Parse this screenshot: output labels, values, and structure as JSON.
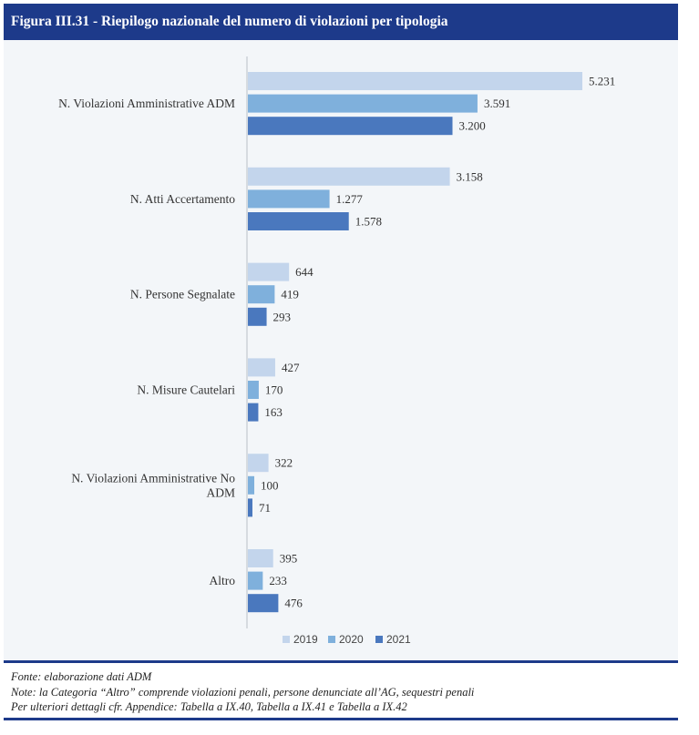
{
  "figure": {
    "title": "Figura III.31 - Riepilogo nazionale del numero di violazioni per tipologia"
  },
  "chart_data": {
    "type": "bar",
    "orientation": "horizontal",
    "categories": [
      [
        "N. Violazioni Amministrative ADM"
      ],
      [
        "N. Atti Accertamento"
      ],
      [
        "N. Persone Segnalate"
      ],
      [
        "N. Misure Cautelari"
      ],
      [
        "N. Violazioni Amministrative No",
        "ADM"
      ],
      [
        "Altro"
      ]
    ],
    "series": [
      {
        "name": "2019",
        "color": "#c3d5ec",
        "values": [
          5231,
          3158,
          644,
          427,
          322,
          395
        ],
        "labels": [
          "5.231",
          "3.158",
          "644",
          "427",
          "322",
          "395"
        ]
      },
      {
        "name": "2020",
        "color": "#7fb0dc",
        "values": [
          3591,
          1277,
          419,
          170,
          100,
          233
        ],
        "labels": [
          "3.591",
          "1.277",
          "419",
          "170",
          "100",
          "233"
        ]
      },
      {
        "name": "2021",
        "color": "#4a78be",
        "values": [
          3200,
          1578,
          293,
          163,
          71,
          476
        ],
        "labels": [
          "3.200",
          "1.578",
          "293",
          "163",
          "71",
          "476"
        ]
      }
    ],
    "xlim": [
      0,
      5231
    ],
    "grid": false,
    "legend_position": "bottom"
  },
  "notes": {
    "source": "Fonte: elaborazione dati ADM",
    "note": "Note: la Categoria “Altro” comprende violazioni penali, persone denunciate all’AG, sequestri penali",
    "details": "Per ulteriori dettagli cfr. Appendice: Tabella a IX.40, Tabella a IX.41 e Tabella a IX.42"
  }
}
